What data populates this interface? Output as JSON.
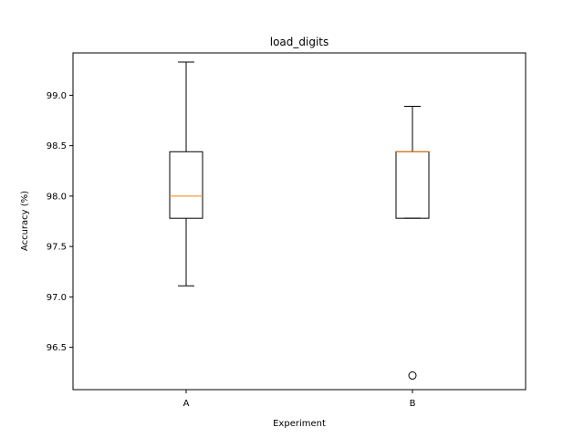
{
  "chart_data": {
    "type": "boxplot",
    "title": "load_digits",
    "xlabel": "Experiment",
    "ylabel": "Accuracy (%)",
    "categories": [
      "A",
      "B"
    ],
    "ylim": [
      96.08,
      99.42
    ],
    "yticks": [
      96.5,
      97.0,
      97.5,
      98.0,
      98.5,
      99.0
    ],
    "ytick_labels": [
      "96.5",
      "97.0",
      "97.5",
      "98.0",
      "98.5",
      "99.0"
    ],
    "grid": false,
    "boxes": [
      {
        "category": "A",
        "whisker_low": 97.11,
        "q1": 97.78,
        "median": 98.0,
        "q3": 98.44,
        "whisker_high": 99.33,
        "outliers": []
      },
      {
        "category": "B",
        "whisker_low": 97.78,
        "q1": 97.78,
        "median": 98.44,
        "q3": 98.44,
        "whisker_high": 98.89,
        "outliers": [
          96.22
        ]
      }
    ],
    "colors": {
      "box": "#000000",
      "median": "#ff7f0e",
      "background": "#ffffff"
    }
  }
}
